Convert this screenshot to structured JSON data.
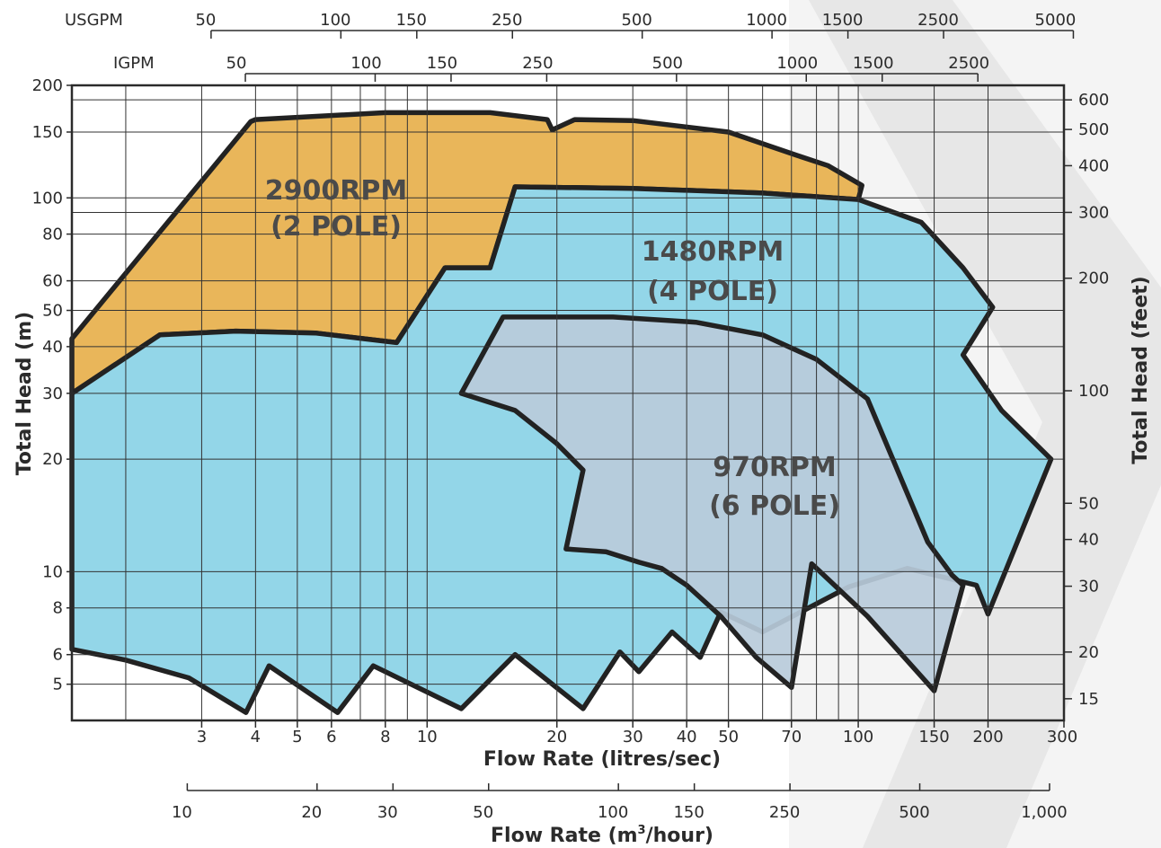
{
  "chart_data": {
    "type": "area",
    "scale": "log-log",
    "grid": true,
    "colors": {
      "pole2": "#e9b65a",
      "pole4": "#93d6e8",
      "pole6": "#b8cbda",
      "outline": "#222222",
      "watermark": "#e6e6e6"
    },
    "axes": {
      "x_bottom": {
        "title": "Flow Rate (litres/sec)",
        "range": [
          1.5,
          300
        ],
        "ticks": [
          3,
          4,
          5,
          6,
          8,
          10,
          20,
          30,
          40,
          50,
          70,
          100,
          150,
          200,
          300
        ],
        "tick_labels": [
          "3",
          "4",
          "5",
          "6",
          "8",
          "10",
          "20",
          "30",
          "40",
          "50",
          "70",
          "100",
          "150",
          "200",
          "300"
        ]
      },
      "x_m3h": {
        "title_main": "Flow Rate (m",
        "title_sup": "3",
        "title_end": "/hour)",
        "ticks": [
          10,
          20,
          30,
          50,
          100,
          150,
          250,
          500,
          1000
        ],
        "tick_labels": [
          "10",
          "20",
          "30",
          "50",
          "100",
          "150",
          "250",
          "500",
          "1,000"
        ]
      },
      "x_usgpm": {
        "label": "USGPM",
        "ticks": [
          50,
          100,
          150,
          250,
          500,
          1000,
          1500,
          2500,
          5000
        ],
        "tick_labels": [
          "50",
          "100",
          "150",
          "250",
          "500",
          "1000",
          "1500",
          "2500",
          "5000"
        ]
      },
      "x_igpm": {
        "label": "IGPM",
        "ticks": [
          50,
          100,
          150,
          250,
          500,
          1000,
          1500,
          2500
        ],
        "tick_labels": [
          "50",
          "100",
          "150",
          "250",
          "500",
          "1000",
          "1500",
          "2500"
        ]
      },
      "y_left": {
        "title": "Total Head (m)",
        "range": [
          4,
          200
        ],
        "ticks": [
          5,
          6,
          8,
          10,
          20,
          30,
          40,
          50,
          60,
          80,
          100,
          150,
          200
        ],
        "tick_labels": [
          "5",
          "6",
          "8",
          "10",
          "20",
          "30",
          "40",
          "50",
          "60",
          "80",
          "100",
          "150",
          "200"
        ]
      },
      "y_right": {
        "title": "Total Head (feet)",
        "ticks": [
          15,
          20,
          30,
          40,
          50,
          100,
          200,
          300,
          400,
          500,
          600
        ],
        "tick_labels": [
          "15",
          "20",
          "30",
          "40",
          "50",
          "100",
          "200",
          "300",
          "400",
          "500",
          "600"
        ]
      }
    },
    "regions": [
      {
        "name": "2900RPM",
        "sub": "(2 POLE)",
        "color": "pole2",
        "points": [
          [
            1.5,
            42
          ],
          [
            1.5,
            30
          ],
          [
            2.4,
            43
          ],
          [
            3.6,
            44
          ],
          [
            5.5,
            43.5
          ],
          [
            8.5,
            41
          ],
          [
            11,
            65
          ],
          [
            14,
            65
          ],
          [
            16,
            107
          ],
          [
            30,
            106
          ],
          [
            60,
            103
          ],
          [
            100,
            99
          ],
          [
            102,
            108
          ],
          [
            85,
            122
          ],
          [
            72,
            130
          ],
          [
            50,
            150
          ],
          [
            30,
            161
          ],
          [
            22,
            162
          ],
          [
            19.5,
            152
          ],
          [
            19,
            162
          ],
          [
            14,
            169
          ],
          [
            8,
            169
          ],
          [
            4,
            162
          ],
          [
            3.9,
            160
          ]
        ]
      },
      {
        "name": "1480RPM",
        "sub": "(4 POLE)",
        "color": "pole4",
        "points": [
          [
            1.5,
            30
          ],
          [
            2.4,
            43
          ],
          [
            3.6,
            44
          ],
          [
            5.5,
            43.5
          ],
          [
            8.5,
            41
          ],
          [
            11,
            65
          ],
          [
            14,
            65
          ],
          [
            16,
            107
          ],
          [
            30,
            106
          ],
          [
            60,
            103
          ],
          [
            100,
            99
          ],
          [
            140,
            86
          ],
          [
            175,
            65
          ],
          [
            205,
            51
          ],
          [
            175,
            38
          ],
          [
            215,
            27
          ],
          [
            280,
            20
          ],
          [
            200,
            7.7
          ],
          [
            188,
            9.2
          ],
          [
            130,
            10.2
          ],
          [
            95,
            9.1
          ],
          [
            60,
            6.9
          ],
          [
            48,
            7.8
          ],
          [
            43,
            5.9
          ],
          [
            37,
            6.9
          ],
          [
            31,
            5.4
          ],
          [
            28,
            6.1
          ],
          [
            23,
            4.3
          ],
          [
            16,
            6.0
          ],
          [
            12,
            4.3
          ],
          [
            7.5,
            5.6
          ],
          [
            6.2,
            4.2
          ],
          [
            4.3,
            5.6
          ],
          [
            3.8,
            4.2
          ],
          [
            2.8,
            5.2
          ],
          [
            2.0,
            5.8
          ],
          [
            1.5,
            6.2
          ]
        ]
      },
      {
        "name": "970RPM",
        "sub": "(6 POLE)",
        "color": "pole6",
        "points": [
          [
            15,
            48
          ],
          [
            27,
            48
          ],
          [
            42,
            46.5
          ],
          [
            60,
            43
          ],
          [
            80,
            37
          ],
          [
            105,
            29
          ],
          [
            125,
            18
          ],
          [
            145,
            12
          ],
          [
            165,
            9.8
          ],
          [
            175,
            9.2
          ],
          [
            150,
            4.8
          ],
          [
            105,
            7.6
          ],
          [
            78,
            10.5
          ],
          [
            70,
            4.9
          ],
          [
            58,
            5.9
          ],
          [
            48,
            7.6
          ],
          [
            40,
            9.2
          ],
          [
            35,
            10.2
          ],
          [
            31,
            10.6
          ],
          [
            26,
            11.3
          ],
          [
            21,
            11.5
          ],
          [
            23,
            18.7
          ],
          [
            20,
            22
          ],
          [
            16,
            27
          ],
          [
            12,
            30
          ]
        ]
      }
    ]
  }
}
